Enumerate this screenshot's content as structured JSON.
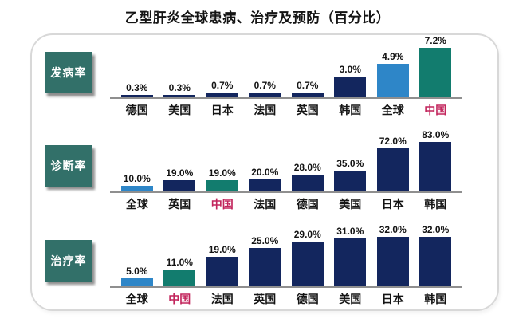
{
  "title": "乙型肝炎全球患病、治疗及预防（百分比）",
  "colors": {
    "bar_navy": "#13265e",
    "bar_global": "#2e86c8",
    "bar_china": "#127c6e",
    "row_label_box": "#327069",
    "china_label_text": "#c2255c",
    "axis_line": "#8f8f8f",
    "card_border": "#d8d8d8",
    "value_text": "#141414"
  },
  "chart_data": [
    {
      "type": "bar",
      "name": "incidence-rate",
      "row_label": "发病率",
      "categories": [
        "德国",
        "美国",
        "日本",
        "法国",
        "英国",
        "韩国",
        "全球",
        "中国"
      ],
      "keys": [
        "germany",
        "usa",
        "japan",
        "france",
        "uk",
        "korea",
        "global",
        "china"
      ],
      "values": [
        0.3,
        0.3,
        0.7,
        0.7,
        0.7,
        3.0,
        4.9,
        7.2
      ],
      "value_labels": [
        "0.3%",
        "0.3%",
        "0.7%",
        "0.7%",
        "0.7%",
        "3.0%",
        "4.9%",
        "7.2%"
      ],
      "bar_styles": [
        "navy",
        "navy",
        "navy",
        "navy",
        "navy",
        "navy",
        "global",
        "china"
      ],
      "label_styles": [
        "default",
        "default",
        "default",
        "default",
        "default",
        "default",
        "default",
        "china"
      ],
      "ylim": [
        0,
        7.2
      ],
      "grid": false,
      "legend": "none"
    },
    {
      "type": "bar",
      "name": "diagnosis-rate",
      "row_label": "诊断率",
      "categories": [
        "全球",
        "英国",
        "中国",
        "法国",
        "德国",
        "美国",
        "日本",
        "韩国"
      ],
      "keys": [
        "global",
        "uk",
        "china",
        "france",
        "germany",
        "usa",
        "japan",
        "korea"
      ],
      "values": [
        10.0,
        19.0,
        19.0,
        20.0,
        28.0,
        35.0,
        72.0,
        83.0
      ],
      "value_labels": [
        "10.0%",
        "19.0%",
        "19.0%",
        "20.0%",
        "28.0%",
        "35.0%",
        "72.0%",
        "83.0%"
      ],
      "bar_styles": [
        "global",
        "navy",
        "china",
        "navy",
        "navy",
        "navy",
        "navy",
        "navy"
      ],
      "label_styles": [
        "default",
        "default",
        "china",
        "default",
        "default",
        "default",
        "default",
        "default"
      ],
      "ylim": [
        0,
        83
      ],
      "grid": false,
      "legend": "none"
    },
    {
      "type": "bar",
      "name": "treatment-rate",
      "row_label": "治疗率",
      "categories": [
        "全球",
        "中国",
        "法国",
        "英国",
        "德国",
        "美国",
        "日本",
        "韩国"
      ],
      "keys": [
        "global",
        "china",
        "france",
        "uk",
        "germany",
        "usa",
        "japan",
        "korea"
      ],
      "values": [
        5.0,
        11.0,
        19.0,
        25.0,
        29.0,
        31.0,
        32.0,
        32.0
      ],
      "value_labels": [
        "5.0%",
        "11.0%",
        "19.0%",
        "25.0%",
        "29.0%",
        "31.0%",
        "32.0%",
        "32.0%"
      ],
      "bar_styles": [
        "global",
        "china",
        "navy",
        "navy",
        "navy",
        "navy",
        "navy",
        "navy"
      ],
      "label_styles": [
        "default",
        "china",
        "default",
        "default",
        "default",
        "default",
        "default",
        "default"
      ],
      "ylim": [
        0,
        32
      ],
      "grid": false,
      "legend": "none"
    }
  ]
}
